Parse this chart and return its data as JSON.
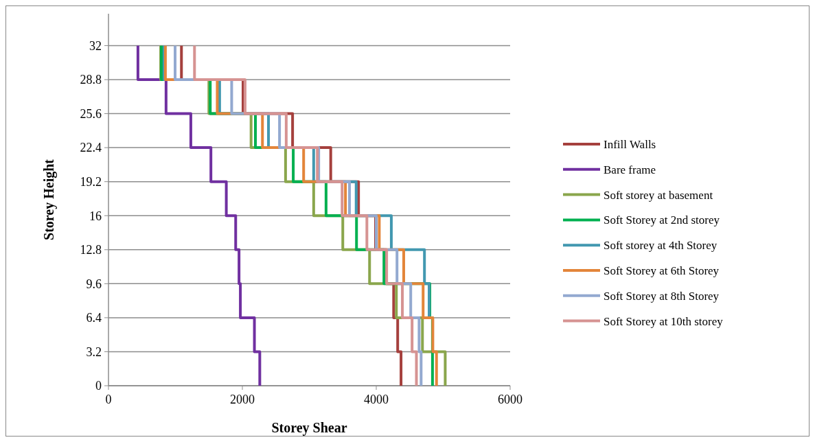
{
  "chart_data": {
    "type": "line",
    "xlabel": "Storey Shear",
    "ylabel": "Storey Height",
    "xlim": [
      0,
      6000
    ],
    "xticks": [
      0,
      2000,
      4000,
      6000
    ],
    "ylim": [
      0,
      35
    ],
    "yticks": [
      0,
      3.2,
      6.4,
      9.6,
      12.8,
      16,
      19.2,
      22.4,
      25.6,
      28.8,
      32
    ],
    "grid": "y",
    "legend": "right",
    "marker": "none",
    "line_style": "solid",
    "series": [
      {
        "name": "Infill Walls",
        "color": "#a5403d",
        "x": [
          4370,
          4370,
          4320,
          4320,
          4260,
          4260,
          4150,
          4150,
          3990,
          3990,
          3735,
          3735,
          3320,
          3320,
          2750,
          2750,
          2010,
          2010,
          1090,
          1090
        ],
        "values": [
          0,
          3.2,
          3.2,
          6.4,
          6.4,
          9.6,
          9.6,
          12.8,
          12.8,
          16,
          16,
          19.2,
          19.2,
          22.4,
          22.4,
          25.6,
          25.6,
          28.8,
          28.8,
          32
        ]
      },
      {
        "name": "Bare frame",
        "color": "#7030a0",
        "x": [
          2260,
          2260,
          2180,
          2180,
          1970,
          1970,
          1950,
          1950,
          1900,
          1900,
          1760,
          1760,
          1530,
          1530,
          1230,
          1230,
          860,
          860,
          440,
          440
        ],
        "values": [
          0,
          3.2,
          3.2,
          6.4,
          6.4,
          9.6,
          9.6,
          12.8,
          12.8,
          16,
          16,
          19.2,
          19.2,
          22.4,
          22.4,
          25.6,
          25.6,
          28.8,
          28.8,
          32
        ]
      },
      {
        "name": "Soft storey at basement",
        "color": "#8aa64c",
        "x": [
          5030,
          5030,
          4690,
          4690,
          4300,
          4300,
          3900,
          3900,
          3500,
          3500,
          3065,
          3065,
          2645,
          2645,
          2130,
          2130,
          1500,
          1500,
          780,
          780
        ],
        "values": [
          0,
          3.2,
          3.2,
          6.4,
          6.4,
          9.6,
          9.6,
          12.8,
          12.8,
          16,
          16,
          19.2,
          19.2,
          22.4,
          22.4,
          25.6,
          25.6,
          28.8,
          28.8,
          32
        ]
      },
      {
        "name": "Soft Storey at 2nd storey",
        "color": "#00b050",
        "x": [
          4840,
          4840,
          4840,
          4840,
          4800,
          4800,
          4115,
          4115,
          3705,
          3705,
          3250,
          3250,
          2760,
          2760,
          2195,
          2195,
          1520,
          1520,
          790,
          790
        ],
        "values": [
          0,
          3.2,
          3.2,
          6.4,
          6.4,
          9.6,
          9.6,
          12.8,
          12.8,
          16,
          16,
          19.2,
          19.2,
          22.4,
          22.4,
          25.6,
          25.6,
          28.8,
          28.8,
          32
        ]
      },
      {
        "name": "Soft storey at 4th Storey",
        "color": "#4298b0",
        "x": [
          null,
          null,
          null,
          null,
          4790,
          4790,
          4720,
          4720,
          4225,
          4225,
          3700,
          3700,
          3065,
          3065,
          2390,
          2390,
          1660,
          1660,
          830,
          830
        ],
        "values": [
          null,
          null,
          null,
          null,
          6.4,
          9.6,
          9.6,
          12.8,
          12.8,
          16,
          16,
          19.2,
          19.2,
          22.4,
          22.4,
          25.6,
          25.6,
          28.8,
          28.8,
          32
        ]
      },
      {
        "name": "Soft Storey at 6th Storey",
        "color": "#e3853a",
        "x": [
          4900,
          4900,
          4845,
          4845,
          4700,
          4700,
          4410,
          4410,
          4045,
          4045,
          3540,
          3540,
          2915,
          2915,
          2300,
          2300,
          1625,
          1625,
          850,
          850
        ],
        "values": [
          0,
          3.2,
          3.2,
          6.4,
          6.4,
          9.6,
          9.6,
          12.8,
          12.8,
          16,
          16,
          19.2,
          19.2,
          22.4,
          22.4,
          25.6,
          25.6,
          28.8,
          28.8,
          32
        ]
      },
      {
        "name": "Soft Storey at 8th Storey",
        "color": "#93a9d0",
        "x": [
          4670,
          4670,
          4640,
          4640,
          4515,
          4515,
          4310,
          4310,
          4000,
          4000,
          3600,
          3600,
          3140,
          3140,
          2555,
          2555,
          1840,
          1840,
          995,
          995
        ],
        "values": [
          0,
          3.2,
          3.2,
          6.4,
          6.4,
          9.6,
          9.6,
          12.8,
          12.8,
          16,
          16,
          19.2,
          19.2,
          22.4,
          22.4,
          25.6,
          25.6,
          28.8,
          28.8,
          32
        ]
      },
      {
        "name": "Soft Storey at 10th storey",
        "color": "#d69392",
        "x": [
          4600,
          4600,
          4535,
          4535,
          4390,
          4390,
          4155,
          4155,
          3860,
          3860,
          3490,
          3490,
          3120,
          3120,
          2655,
          2655,
          2040,
          2040,
          1285,
          1285
        ],
        "values": [
          0,
          3.2,
          3.2,
          6.4,
          6.4,
          9.6,
          9.6,
          12.8,
          12.8,
          16,
          16,
          19.2,
          19.2,
          22.4,
          22.4,
          25.6,
          25.6,
          28.8,
          28.8,
          32
        ]
      }
    ]
  }
}
